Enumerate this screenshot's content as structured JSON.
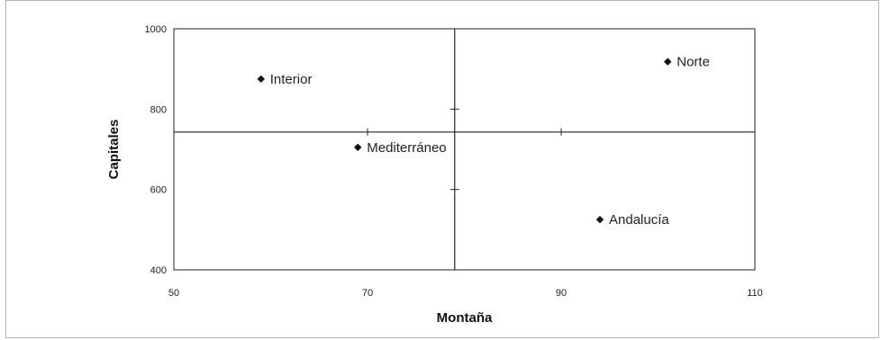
{
  "chart_data": {
    "type": "scatter",
    "title": "",
    "xlabel": "Montaña",
    "ylabel": "Capitales",
    "xlim": [
      50,
      110
    ],
    "ylim": [
      400,
      1000
    ],
    "xticks": [
      50,
      70,
      90,
      110
    ],
    "yticks": [
      400,
      600,
      800,
      1000
    ],
    "xtick_labels": [
      "50",
      "70",
      "90",
      "110"
    ],
    "ytick_labels": [
      "400",
      "600",
      "800",
      "1000"
    ],
    "reference_lines": {
      "x": 79,
      "y": 743
    },
    "grid": false,
    "points": [
      {
        "label": "Interior",
        "x": 59,
        "y": 875
      },
      {
        "label": "Norte",
        "x": 101,
        "y": 918
      },
      {
        "label": "Mediterráneo",
        "x": 69,
        "y": 705
      },
      {
        "label": "Andalucía",
        "x": 94,
        "y": 525
      }
    ],
    "colors": {
      "marker": "#111111",
      "lines": "#222222"
    }
  }
}
